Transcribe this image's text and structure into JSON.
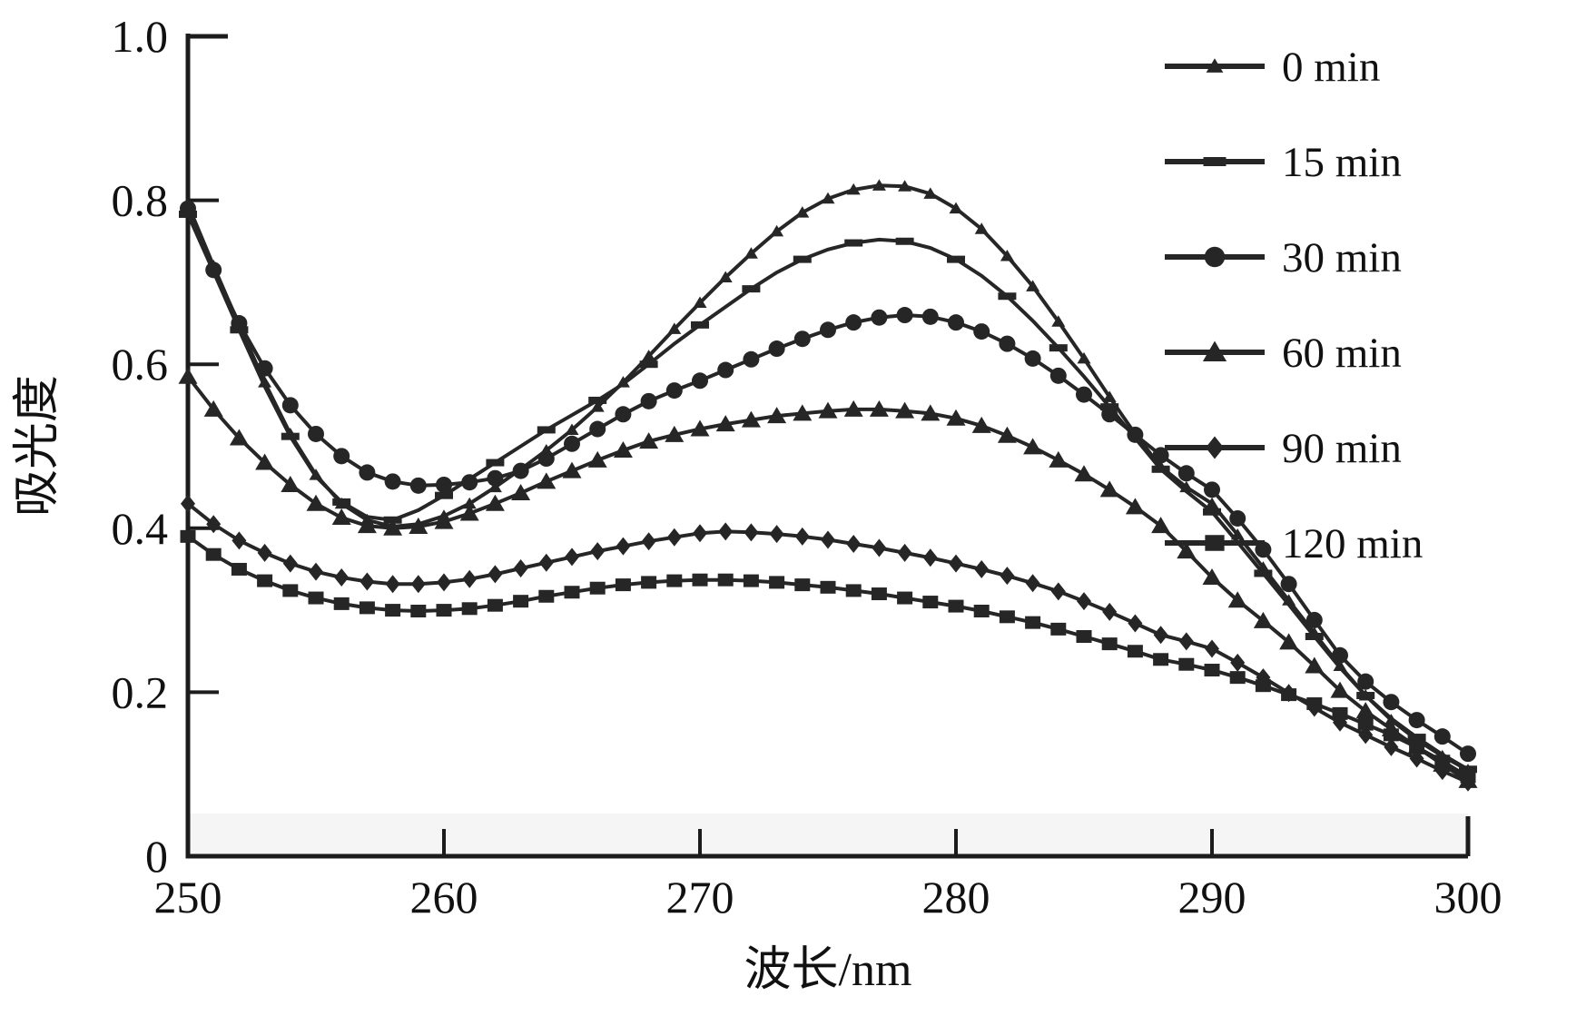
{
  "chart_data": {
    "type": "line",
    "xlabel": "波长/nm",
    "ylabel": "吸光度",
    "x_start": 250,
    "x_end": 300,
    "x_step": 1,
    "xlim": [
      250,
      300
    ],
    "ylim": [
      0,
      1.0
    ],
    "grid": false,
    "legend_position": "right-top-outside",
    "x_ticks": [
      {
        "value": 250,
        "label": "250"
      },
      {
        "value": 260,
        "label": "260"
      },
      {
        "value": 270,
        "label": "270"
      },
      {
        "value": 280,
        "label": "280"
      },
      {
        "value": 290,
        "label": "290"
      },
      {
        "value": 300,
        "label": "300"
      }
    ],
    "y_ticks": [
      {
        "value": 0,
        "label": "0"
      },
      {
        "value": 0.2,
        "label": "0.2"
      },
      {
        "value": 0.4,
        "label": "0.4"
      },
      {
        "value": 0.6,
        "label": "0.6"
      },
      {
        "value": 0.8,
        "label": "0.8"
      },
      {
        "value": 1.0,
        "label": "1.0"
      }
    ],
    "series": [
      {
        "name": "0 min",
        "label": "0 min",
        "marker": "star",
        "marker_every": 1,
        "values": [
          0.795,
          0.72,
          0.648,
          0.578,
          0.515,
          0.465,
          0.43,
          0.41,
          0.402,
          0.405,
          0.415,
          0.43,
          0.45,
          0.472,
          0.495,
          0.52,
          0.548,
          0.578,
          0.61,
          0.643,
          0.675,
          0.706,
          0.735,
          0.762,
          0.785,
          0.802,
          0.813,
          0.818,
          0.817,
          0.808,
          0.79,
          0.765,
          0.732,
          0.695,
          0.652,
          0.607,
          0.56,
          0.515,
          0.475,
          0.45,
          0.43,
          0.392,
          0.352,
          0.312,
          0.272,
          0.232,
          0.196,
          0.166,
          0.142,
          0.122,
          0.105
        ]
      },
      {
        "name": "15 min",
        "label": "15 min",
        "marker": "dash",
        "marker_every": 2,
        "values": [
          0.783,
          0.713,
          0.642,
          0.573,
          0.512,
          0.463,
          0.432,
          0.414,
          0.41,
          0.422,
          0.44,
          0.46,
          0.48,
          0.5,
          0.52,
          0.538,
          0.556,
          0.576,
          0.6,
          0.625,
          0.648,
          0.67,
          0.692,
          0.712,
          0.728,
          0.74,
          0.748,
          0.752,
          0.75,
          0.742,
          0.728,
          0.708,
          0.683,
          0.653,
          0.62,
          0.585,
          0.548,
          0.51,
          0.472,
          0.445,
          0.42,
          0.383,
          0.345,
          0.307,
          0.268,
          0.23,
          0.196,
          0.168,
          0.145,
          0.124,
          0.106
        ]
      },
      {
        "name": "30 min",
        "label": "30 min",
        "marker": "circle",
        "marker_every": 1,
        "values": [
          0.79,
          0.715,
          0.65,
          0.595,
          0.55,
          0.515,
          0.488,
          0.468,
          0.457,
          0.452,
          0.453,
          0.456,
          0.461,
          0.47,
          0.485,
          0.503,
          0.521,
          0.539,
          0.555,
          0.568,
          0.58,
          0.593,
          0.606,
          0.619,
          0.631,
          0.642,
          0.651,
          0.657,
          0.66,
          0.658,
          0.651,
          0.64,
          0.625,
          0.607,
          0.586,
          0.563,
          0.539,
          0.514,
          0.489,
          0.467,
          0.447,
          0.412,
          0.374,
          0.332,
          0.288,
          0.245,
          0.213,
          0.188,
          0.166,
          0.146,
          0.125
        ]
      },
      {
        "name": "60 min",
        "label": "60 min",
        "marker": "triangle",
        "marker_every": 1,
        "values": [
          0.585,
          0.545,
          0.51,
          0.48,
          0.453,
          0.43,
          0.413,
          0.403,
          0.4,
          0.402,
          0.408,
          0.418,
          0.43,
          0.443,
          0.457,
          0.47,
          0.483,
          0.495,
          0.506,
          0.514,
          0.521,
          0.527,
          0.532,
          0.537,
          0.54,
          0.543,
          0.545,
          0.545,
          0.543,
          0.54,
          0.534,
          0.525,
          0.513,
          0.499,
          0.483,
          0.466,
          0.447,
          0.426,
          0.403,
          0.372,
          0.34,
          0.312,
          0.287,
          0.261,
          0.232,
          0.202,
          0.177,
          0.155,
          0.133,
          0.112,
          0.092
        ]
      },
      {
        "name": "90 min",
        "label": "90 min",
        "marker": "diamond",
        "marker_every": 1,
        "values": [
          0.43,
          0.405,
          0.385,
          0.37,
          0.357,
          0.347,
          0.34,
          0.335,
          0.332,
          0.332,
          0.334,
          0.338,
          0.344,
          0.351,
          0.358,
          0.365,
          0.372,
          0.378,
          0.384,
          0.389,
          0.394,
          0.396,
          0.395,
          0.393,
          0.39,
          0.386,
          0.381,
          0.376,
          0.37,
          0.364,
          0.357,
          0.35,
          0.342,
          0.333,
          0.323,
          0.311,
          0.298,
          0.284,
          0.27,
          0.262,
          0.253,
          0.236,
          0.218,
          0.199,
          0.181,
          0.163,
          0.148,
          0.133,
          0.119,
          0.104,
          0.09
        ]
      },
      {
        "name": "120 min",
        "label": "120 min",
        "marker": "square",
        "marker_every": 1,
        "values": [
          0.39,
          0.368,
          0.35,
          0.336,
          0.324,
          0.315,
          0.308,
          0.303,
          0.3,
          0.299,
          0.3,
          0.302,
          0.306,
          0.311,
          0.317,
          0.322,
          0.327,
          0.331,
          0.334,
          0.336,
          0.337,
          0.337,
          0.336,
          0.334,
          0.331,
          0.328,
          0.324,
          0.32,
          0.315,
          0.31,
          0.305,
          0.299,
          0.292,
          0.285,
          0.277,
          0.268,
          0.259,
          0.25,
          0.24,
          0.234,
          0.227,
          0.218,
          0.208,
          0.197,
          0.186,
          0.174,
          0.161,
          0.148,
          0.133,
          0.116,
          0.097
        ]
      }
    ],
    "colors": {
      "line": "#262626",
      "axis": "#1c1c1c",
      "text": "#111111",
      "baseline_band": "#f5f5f5"
    }
  }
}
